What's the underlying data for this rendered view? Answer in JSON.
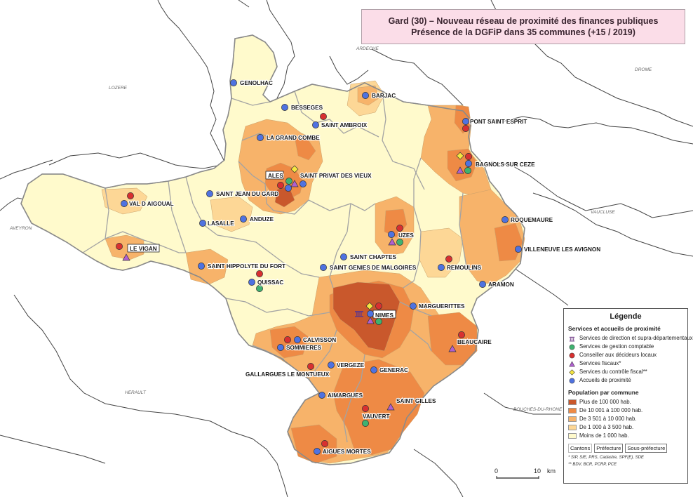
{
  "title": {
    "line1": "Gard (30) – Nouveau réseau de proximité des finances publiques",
    "line2": "Présence de la DGFiP dans 35 communes (+15 / 2019)"
  },
  "neighbors": [
    "ARDECHE",
    "LOZERE",
    "DROME",
    "AVEYRON",
    "VAUCLUSE",
    "HERAULT",
    "BOUCHES-DU-RHONE"
  ],
  "colors": {
    "c1": "#c9582c",
    "c2": "#ee8a45",
    "c3": "#f7b36a",
    "c4": "#fdd796",
    "c5": "#fffacc",
    "blue": "#4f72e0",
    "red": "#d83030",
    "green": "#3fb270",
    "purple": "#b060d0",
    "yellow": "#f5e640"
  },
  "communes": [
    {
      "name": "GENOLHAC",
      "symbols": [
        "blue"
      ]
    },
    {
      "name": "BARJAC",
      "symbols": [
        "blue"
      ]
    },
    {
      "name": "BESSEGES",
      "symbols": [
        "blue"
      ]
    },
    {
      "name": "SAINT AMBROIX",
      "symbols": [
        "blue",
        "red"
      ]
    },
    {
      "name": "PONT SAINT ESPRIT",
      "symbols": [
        "blue",
        "red"
      ]
    },
    {
      "name": "LA GRAND COMBE",
      "symbols": [
        "blue"
      ]
    },
    {
      "name": "BAGNOLS SUR CEZE",
      "symbols": [
        "red",
        "green",
        "purple",
        "yellow",
        "blue"
      ]
    },
    {
      "name": "ALES",
      "symbols": [
        "red",
        "green",
        "purple",
        "yellow",
        "blue"
      ]
    },
    {
      "name": "SAINT PRIVAT DES VIEUX",
      "symbols": [
        "blue"
      ]
    },
    {
      "name": "SAINT JEAN DU GARD",
      "symbols": [
        "blue"
      ]
    },
    {
      "name": "VAL D AIGOUAL",
      "symbols": [
        "blue",
        "red"
      ]
    },
    {
      "name": "ANDUZE",
      "symbols": [
        "blue"
      ]
    },
    {
      "name": "LASALLE",
      "symbols": [
        "blue"
      ]
    },
    {
      "name": "ROQUEMAURE",
      "symbols": [
        "blue"
      ]
    },
    {
      "name": "UZES",
      "symbols": [
        "red",
        "green",
        "purple",
        "blue"
      ]
    },
    {
      "name": "LE VIGAN",
      "symbols": [
        "red",
        "purple"
      ]
    },
    {
      "name": "VILLENEUVE LES AVIGNON",
      "symbols": [
        "blue"
      ]
    },
    {
      "name": "SAINT CHAPTES",
      "symbols": [
        "blue"
      ]
    },
    {
      "name": "SAINT HIPPOLYTE DU FORT",
      "symbols": [
        "blue"
      ]
    },
    {
      "name": "SAINT GENIES DE MALGOIRES",
      "symbols": [
        "blue"
      ]
    },
    {
      "name": "REMOULINS",
      "symbols": [
        "blue",
        "red"
      ]
    },
    {
      "name": "QUISSAC",
      "symbols": [
        "blue",
        "red",
        "green"
      ]
    },
    {
      "name": "ARAMON",
      "symbols": [
        "blue"
      ]
    },
    {
      "name": "MARGUERITTES",
      "symbols": [
        "blue"
      ]
    },
    {
      "name": "NIMES",
      "symbols": [
        "direction",
        "red",
        "green",
        "purple",
        "yellow",
        "blue"
      ]
    },
    {
      "name": "BEAUCAIRE",
      "symbols": [
        "red",
        "purple"
      ]
    },
    {
      "name": "CALVISSON",
      "symbols": [
        "blue"
      ]
    },
    {
      "name": "SOMMIERES",
      "symbols": [
        "blue",
        "red"
      ]
    },
    {
      "name": "VERGEZE",
      "symbols": [
        "blue"
      ]
    },
    {
      "name": "GALLARGUES LE MONTUEUX",
      "symbols": [
        "red"
      ]
    },
    {
      "name": "GENERAC",
      "symbols": [
        "blue"
      ]
    },
    {
      "name": "AIMARGUES",
      "symbols": [
        "blue"
      ]
    },
    {
      "name": "SAINT GILLES",
      "symbols": [
        "purple"
      ]
    },
    {
      "name": "VAUVERT",
      "symbols": [
        "red",
        "green"
      ]
    },
    {
      "name": "AIGUES MORTES",
      "symbols": [
        "blue",
        "red"
      ]
    }
  ],
  "legend": {
    "title": "Légende",
    "services_title": "Services et accueils de proximité",
    "services": [
      {
        "label": "Services de direction et supra-départementaux",
        "symbol": "direction"
      },
      {
        "label": "Services de gestion comptable",
        "symbol": "green"
      },
      {
        "label": "Conseiller aux décideurs locaux",
        "symbol": "red"
      },
      {
        "label": "Services fiscaux*",
        "symbol": "purple"
      },
      {
        "label": "Services du contrôle fiscal**",
        "symbol": "yellow"
      },
      {
        "label": "Accueils de proximité",
        "symbol": "blue"
      }
    ],
    "population_title": "Population par commune",
    "population": [
      {
        "label": "Plus de 100 000 hab.",
        "color": "#c9582c"
      },
      {
        "label": "De 10 001 à 100 000 hab.",
        "color": "#ee8a45"
      },
      {
        "label": "De 3 501 à  10 000 hab.",
        "color": "#f7b36a"
      },
      {
        "label": "De 1 000 à  3 500 hab.",
        "color": "#fdd796"
      },
      {
        "label": "Moins de 1 000 hab.",
        "color": "#fffacc"
      }
    ],
    "boxes": [
      "Cantons",
      "Préfecture",
      "Sous-préfecture"
    ],
    "note1": "* SIP, SIE, PRS, Cadastre, SPF(E), SDE",
    "note2": "** BDV, BCR, PCRP, PCE"
  },
  "scale": {
    "start": "0",
    "end": "10",
    "unit": "km"
  }
}
